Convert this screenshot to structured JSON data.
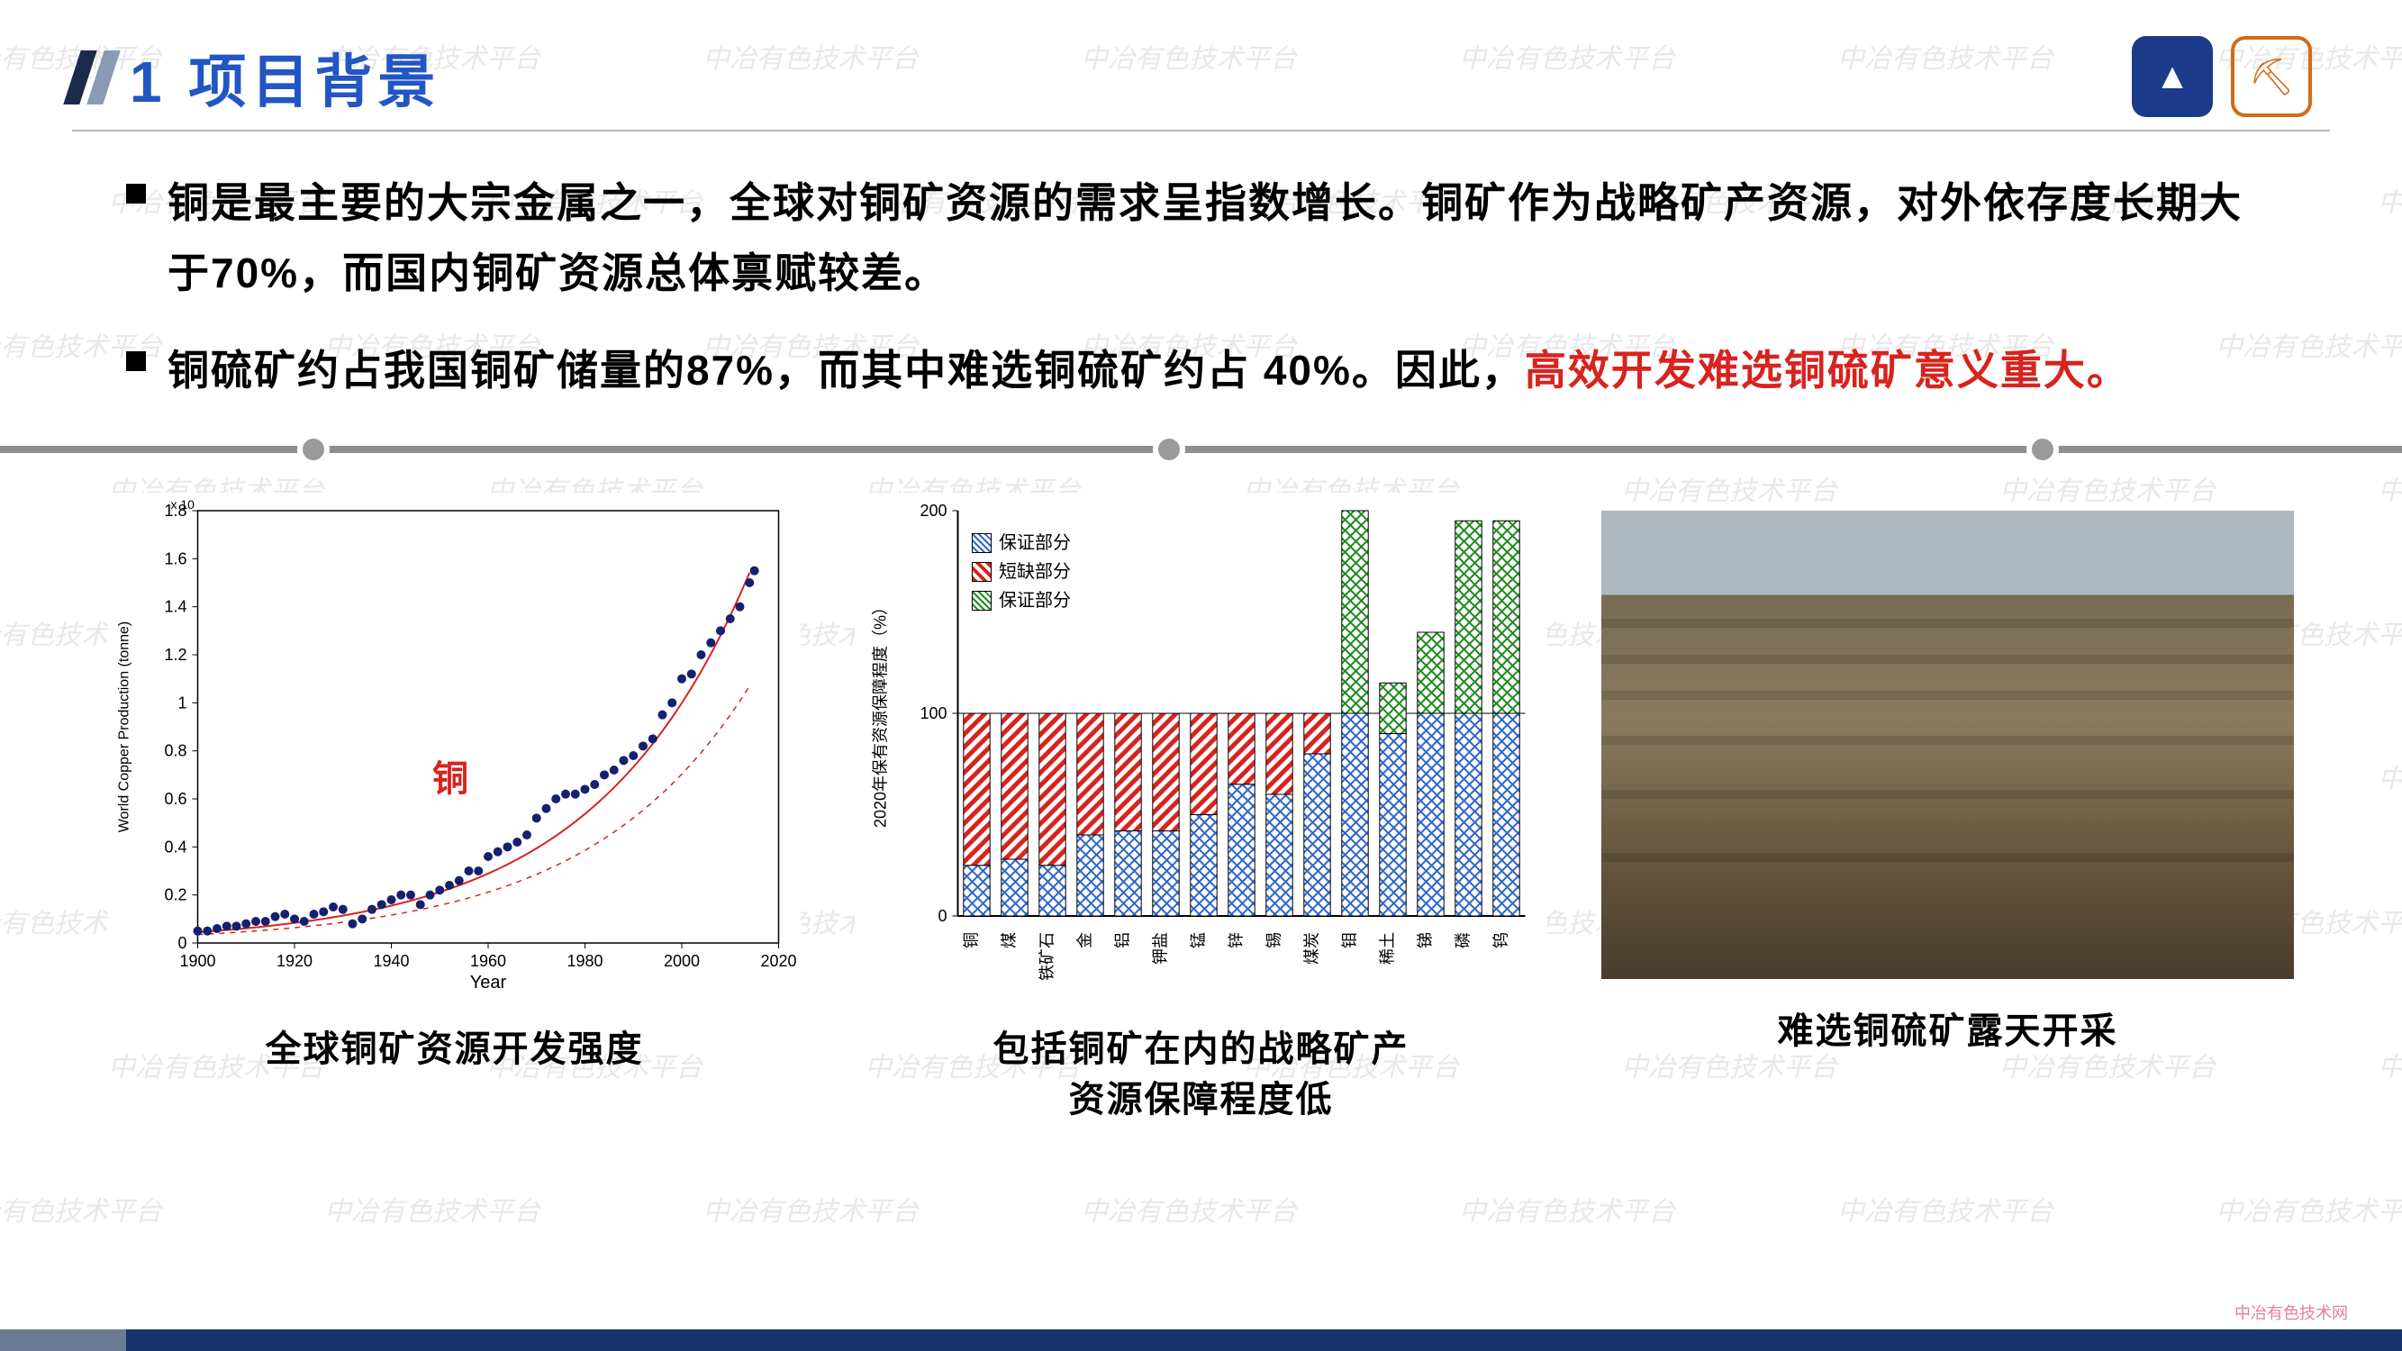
{
  "watermark_text": "中冶有色技术平台",
  "header": {
    "title": "1 项目背景"
  },
  "bullets": [
    {
      "parts": [
        {
          "text": "铜是最主要的大宗金属之一，全球对铜矿资源的需求呈指数增长。铜矿作为战略矿产资源，对外依存度长期大于70%，而国内铜矿资源总体禀赋较差。",
          "red": false
        }
      ]
    },
    {
      "parts": [
        {
          "text": "铜硫矿约占我国铜矿储量的87%，而其中难选铜硫矿约占 40%。因此，",
          "red": false
        },
        {
          "text": "高效开发难选铜硫矿意义重大。",
          "red": true
        }
      ]
    }
  ],
  "figures": {
    "chart1": {
      "type": "scatter",
      "annotation": "铜",
      "x_label": "Year",
      "y_label": "World Copper Production (tonne)",
      "y_axis_note": "x 10",
      "x_ticks": [
        1900,
        1920,
        1940,
        1960,
        1980,
        2000,
        2020
      ],
      "y_ticks": [
        0,
        0.2,
        0.4,
        0.6,
        0.8,
        1,
        1.2,
        1.4,
        1.6,
        1.8
      ],
      "xlim": [
        1900,
        2020
      ],
      "ylim": [
        0,
        1.8
      ],
      "point_color": "#16206f",
      "fit_color": "#d8231e",
      "points": [
        [
          1900,
          0.05
        ],
        [
          1902,
          0.05
        ],
        [
          1904,
          0.06
        ],
        [
          1906,
          0.07
        ],
        [
          1908,
          0.07
        ],
        [
          1910,
          0.08
        ],
        [
          1912,
          0.09
        ],
        [
          1914,
          0.09
        ],
        [
          1916,
          0.11
        ],
        [
          1918,
          0.12
        ],
        [
          1920,
          0.1
        ],
        [
          1922,
          0.09
        ],
        [
          1924,
          0.12
        ],
        [
          1926,
          0.13
        ],
        [
          1928,
          0.15
        ],
        [
          1930,
          0.14
        ],
        [
          1932,
          0.08
        ],
        [
          1934,
          0.1
        ],
        [
          1936,
          0.14
        ],
        [
          1938,
          0.16
        ],
        [
          1940,
          0.18
        ],
        [
          1942,
          0.2
        ],
        [
          1944,
          0.2
        ],
        [
          1946,
          0.16
        ],
        [
          1948,
          0.2
        ],
        [
          1950,
          0.22
        ],
        [
          1952,
          0.24
        ],
        [
          1954,
          0.26
        ],
        [
          1956,
          0.3
        ],
        [
          1958,
          0.3
        ],
        [
          1960,
          0.36
        ],
        [
          1962,
          0.38
        ],
        [
          1964,
          0.4
        ],
        [
          1966,
          0.42
        ],
        [
          1968,
          0.45
        ],
        [
          1970,
          0.52
        ],
        [
          1972,
          0.56
        ],
        [
          1974,
          0.6
        ],
        [
          1976,
          0.62
        ],
        [
          1978,
          0.62
        ],
        [
          1980,
          0.64
        ],
        [
          1982,
          0.66
        ],
        [
          1984,
          0.7
        ],
        [
          1986,
          0.72
        ],
        [
          1988,
          0.76
        ],
        [
          1990,
          0.78
        ],
        [
          1992,
          0.82
        ],
        [
          1994,
          0.85
        ],
        [
          1996,
          0.95
        ],
        [
          1998,
          1.0
        ],
        [
          2000,
          1.1
        ],
        [
          2002,
          1.12
        ],
        [
          2004,
          1.2
        ],
        [
          2006,
          1.25
        ],
        [
          2008,
          1.3
        ],
        [
          2010,
          1.35
        ],
        [
          2012,
          1.4
        ],
        [
          2014,
          1.5
        ],
        [
          2015,
          1.55
        ]
      ],
      "caption": "全球铜矿资源开发强度"
    },
    "chart2": {
      "type": "stacked-bar",
      "y_label": "2020年保有资源保障程度（%）",
      "y_ticks": [
        0,
        100,
        200
      ],
      "ylim": [
        0,
        200
      ],
      "legend": [
        {
          "label": "保证部分",
          "pattern": "blue-diamond",
          "color": "#2e66c9"
        },
        {
          "label": "短缺部分",
          "pattern": "red-stripe",
          "color": "#d8231e"
        },
        {
          "label": "保证部分",
          "pattern": "green-diamond",
          "color": "#1f8a1f"
        }
      ],
      "categories": [
        "铜",
        "煤",
        "铁矿石",
        "金",
        "铝",
        "钾盐",
        "锰",
        "锌",
        "锡",
        "煤炭",
        "钼",
        "稀土",
        "锑",
        "磷",
        "钨"
      ],
      "bars": [
        {
          "blue": 25,
          "red": 75,
          "green": 0
        },
        {
          "blue": 28,
          "red": 72,
          "green": 0
        },
        {
          "blue": 25,
          "red": 75,
          "green": 0
        },
        {
          "blue": 40,
          "red": 60,
          "green": 0
        },
        {
          "blue": 42,
          "red": 58,
          "green": 0
        },
        {
          "blue": 42,
          "red": 58,
          "green": 0
        },
        {
          "blue": 50,
          "red": 50,
          "green": 0
        },
        {
          "blue": 65,
          "red": 35,
          "green": 0
        },
        {
          "blue": 60,
          "red": 40,
          "green": 0
        },
        {
          "blue": 80,
          "red": 20,
          "green": 0
        },
        {
          "blue": 100,
          "red": 0,
          "green": 100
        },
        {
          "blue": 90,
          "red": 0,
          "green": 25
        },
        {
          "blue": 100,
          "red": 0,
          "green": 40
        },
        {
          "blue": 100,
          "red": 0,
          "green": 95
        },
        {
          "blue": 100,
          "red": 0,
          "green": 95
        }
      ],
      "bar_border": "#000000",
      "caption": "包括铜矿在内的战略矿产\n资源保障程度低"
    },
    "photo": {
      "caption": "难选铜硫矿露天开采"
    }
  },
  "footer": {
    "logo_text": "中冶有色技术网"
  },
  "colors": {
    "title": "#2156c4",
    "highlight": "#d8231e",
    "footer": "#16336b"
  }
}
